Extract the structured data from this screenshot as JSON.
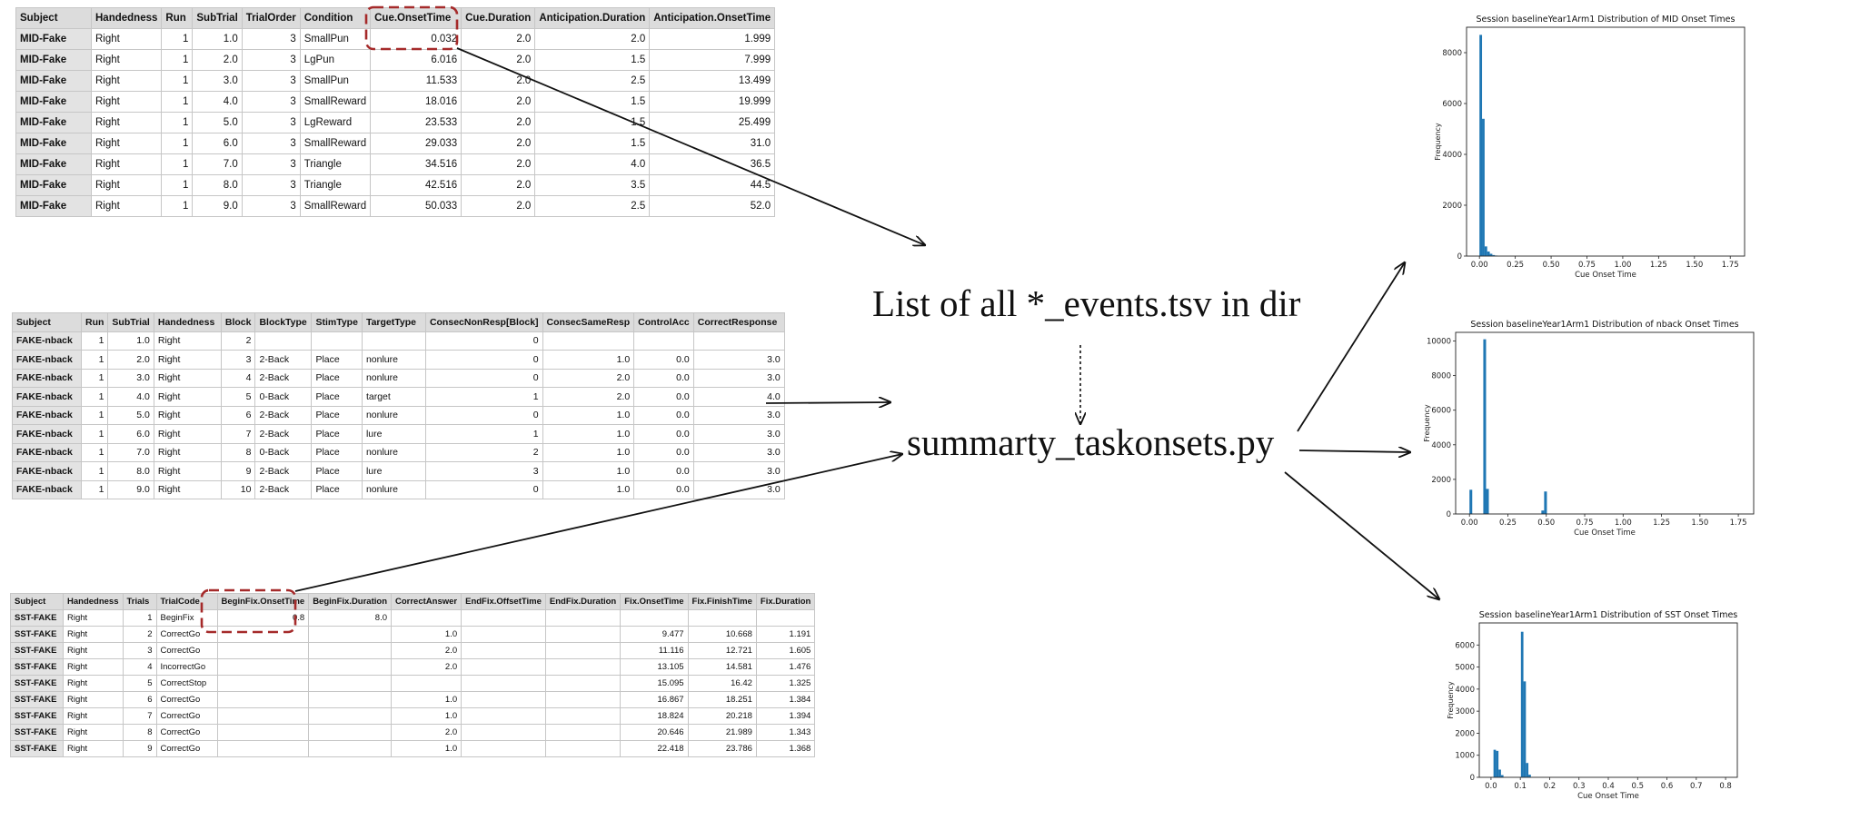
{
  "tables": {
    "mid": {
      "columns": [
        "Subject",
        "Handedness",
        "Run",
        "SubTrial",
        "TrialOrder",
        "Condition",
        "Cue.OnsetTime",
        "Cue.Duration",
        "Anticipation.Duration",
        "Anticipation.OnsetTime"
      ],
      "rows": [
        [
          "MID-Fake",
          "Right",
          "1",
          "1.0",
          "3",
          "SmallPun",
          "0.032",
          "2.0",
          "2.0",
          "1.999"
        ],
        [
          "MID-Fake",
          "Right",
          "1",
          "2.0",
          "3",
          "LgPun",
          "6.016",
          "2.0",
          "1.5",
          "7.999"
        ],
        [
          "MID-Fake",
          "Right",
          "1",
          "3.0",
          "3",
          "SmallPun",
          "11.533",
          "2.0",
          "2.5",
          "13.499"
        ],
        [
          "MID-Fake",
          "Right",
          "1",
          "4.0",
          "3",
          "SmallReward",
          "18.016",
          "2.0",
          "1.5",
          "19.999"
        ],
        [
          "MID-Fake",
          "Right",
          "1",
          "5.0",
          "3",
          "LgReward",
          "23.533",
          "2.0",
          "1.5",
          "25.499"
        ],
        [
          "MID-Fake",
          "Right",
          "1",
          "6.0",
          "3",
          "SmallReward",
          "29.033",
          "2.0",
          "1.5",
          "31.0"
        ],
        [
          "MID-Fake",
          "Right",
          "1",
          "7.0",
          "3",
          "Triangle",
          "34.516",
          "2.0",
          "4.0",
          "36.5"
        ],
        [
          "MID-Fake",
          "Right",
          "1",
          "8.0",
          "3",
          "Triangle",
          "42.516",
          "2.0",
          "3.5",
          "44.5"
        ],
        [
          "MID-Fake",
          "Right",
          "1",
          "9.0",
          "3",
          "SmallReward",
          "50.033",
          "2.0",
          "2.5",
          "52.0"
        ]
      ]
    },
    "nback": {
      "columns": [
        "Subject",
        "Run",
        "SubTrial",
        "Handedness",
        "Block",
        "BlockType",
        "StimType",
        "TargetType",
        "ConsecNonResp[Block]",
        "ConsecSameResp",
        "ControlAcc",
        "CorrectResponse"
      ],
      "rows": [
        [
          "FAKE-nback",
          "1",
          "1.0",
          "Right",
          "2",
          "",
          "",
          "",
          "0",
          "",
          "",
          ""
        ],
        [
          "FAKE-nback",
          "1",
          "2.0",
          "Right",
          "3",
          "2-Back",
          "Place",
          "nonlure",
          "0",
          "1.0",
          "0.0",
          "3.0"
        ],
        [
          "FAKE-nback",
          "1",
          "3.0",
          "Right",
          "4",
          "2-Back",
          "Place",
          "nonlure",
          "0",
          "2.0",
          "0.0",
          "3.0"
        ],
        [
          "FAKE-nback",
          "1",
          "4.0",
          "Right",
          "5",
          "0-Back",
          "Place",
          "target",
          "1",
          "2.0",
          "0.0",
          "4.0"
        ],
        [
          "FAKE-nback",
          "1",
          "5.0",
          "Right",
          "6",
          "2-Back",
          "Place",
          "nonlure",
          "0",
          "1.0",
          "0.0",
          "3.0"
        ],
        [
          "FAKE-nback",
          "1",
          "6.0",
          "Right",
          "7",
          "2-Back",
          "Place",
          "lure",
          "1",
          "1.0",
          "0.0",
          "3.0"
        ],
        [
          "FAKE-nback",
          "1",
          "7.0",
          "Right",
          "8",
          "0-Back",
          "Place",
          "nonlure",
          "2",
          "1.0",
          "0.0",
          "3.0"
        ],
        [
          "FAKE-nback",
          "1",
          "8.0",
          "Right",
          "9",
          "2-Back",
          "Place",
          "lure",
          "3",
          "1.0",
          "0.0",
          "3.0"
        ],
        [
          "FAKE-nback",
          "1",
          "9.0",
          "Right",
          "10",
          "2-Back",
          "Place",
          "nonlure",
          "0",
          "1.0",
          "0.0",
          "3.0"
        ]
      ]
    },
    "sst": {
      "columns": [
        "Subject",
        "Handedness",
        "Trials",
        "TrialCode",
        "BeginFix.OnsetTime",
        "BeginFix.Duration",
        "CorrectAnswer",
        "EndFix.OffsetTime",
        "EndFix.Duration",
        "Fix.OnsetTime",
        "Fix.FinishTime",
        "Fix.Duration"
      ],
      "rows": [
        [
          "SST-FAKE",
          "Right",
          "1",
          "BeginFix",
          "0.8",
          "8.0",
          "",
          "",
          "",
          "",
          "",
          ""
        ],
        [
          "SST-FAKE",
          "Right",
          "2",
          "CorrectGo",
          "",
          "",
          "1.0",
          "",
          "",
          "9.477",
          "10.668",
          "1.191"
        ],
        [
          "SST-FAKE",
          "Right",
          "3",
          "CorrectGo",
          "",
          "",
          "2.0",
          "",
          "",
          "11.116",
          "12.721",
          "1.605"
        ],
        [
          "SST-FAKE",
          "Right",
          "4",
          "IncorrectGo",
          "",
          "",
          "2.0",
          "",
          "",
          "13.105",
          "14.581",
          "1.476"
        ],
        [
          "SST-FAKE",
          "Right",
          "5",
          "CorrectStop",
          "",
          "",
          "",
          "",
          "",
          "15.095",
          "16.42",
          "1.325"
        ],
        [
          "SST-FAKE",
          "Right",
          "6",
          "CorrectGo",
          "",
          "",
          "1.0",
          "",
          "",
          "16.867",
          "18.251",
          "1.384"
        ],
        [
          "SST-FAKE",
          "Right",
          "7",
          "CorrectGo",
          "",
          "",
          "1.0",
          "",
          "",
          "18.824",
          "20.218",
          "1.394"
        ],
        [
          "SST-FAKE",
          "Right",
          "8",
          "CorrectGo",
          "",
          "",
          "2.0",
          "",
          "",
          "20.646",
          "21.989",
          "1.343"
        ],
        [
          "SST-FAKE",
          "Right",
          "9",
          "CorrectGo",
          "",
          "",
          "1.0",
          "",
          "",
          "22.418",
          "23.786",
          "1.368"
        ]
      ]
    }
  },
  "diagram": {
    "events_label": "List of all *_events.tsv in dir",
    "script_label": "summarty_taskonsets.py",
    "arrow_color": "#111111",
    "highlight_color": "#a52a2a"
  },
  "chart_data": [
    {
      "type": "bar",
      "title": "Session baselineYear1Arm1 Distribution of MID Onset Times",
      "xlabel": "Cue Onset Time",
      "ylabel": "Frequency",
      "xlim": [
        -0.09,
        1.85
      ],
      "ylim": [
        0,
        9000
      ],
      "xticks": [
        "0.00",
        "0.25",
        "0.50",
        "0.75",
        "1.00",
        "1.25",
        "1.50",
        "1.75"
      ],
      "yticks": [
        "0",
        "2000",
        "4000",
        "6000",
        "8000"
      ],
      "bin_width": 0.018,
      "bars": [
        {
          "x": 0.0,
          "value": 8700
        },
        {
          "x": 0.018,
          "value": 5400
        },
        {
          "x": 0.036,
          "value": 380
        },
        {
          "x": 0.054,
          "value": 180
        },
        {
          "x": 0.072,
          "value": 90
        },
        {
          "x": 0.09,
          "value": 40
        },
        {
          "x": 0.108,
          "value": 20
        }
      ],
      "color": "#1f77b4"
    },
    {
      "type": "bar",
      "title": "Session baselineYear1Arm1 Distribution of nback Onset Times",
      "xlabel": "Cue Onset Time",
      "ylabel": "Frequency",
      "xlim": [
        -0.09,
        1.85
      ],
      "ylim": [
        0,
        10500
      ],
      "xticks": [
        "0.00",
        "0.25",
        "0.50",
        "0.75",
        "1.00",
        "1.25",
        "1.50",
        "1.75"
      ],
      "yticks": [
        "0",
        "2000",
        "4000",
        "6000",
        "8000",
        "10000"
      ],
      "bin_width": 0.018,
      "bars": [
        {
          "x": 0.0,
          "value": 1400
        },
        {
          "x": 0.09,
          "value": 10100
        },
        {
          "x": 0.108,
          "value": 1450
        },
        {
          "x": 0.468,
          "value": 200
        },
        {
          "x": 0.486,
          "value": 1300
        }
      ],
      "color": "#1f77b4"
    },
    {
      "type": "bar",
      "title": "Session baselineYear1Arm1 Distribution of SST Onset Times",
      "xlabel": "Cue Onset Time",
      "ylabel": "Frequency",
      "xlim": [
        -0.04,
        0.84
      ],
      "ylim": [
        0,
        7000
      ],
      "xticks": [
        "0.0",
        "0.1",
        "0.2",
        "0.3",
        "0.4",
        "0.5",
        "0.6",
        "0.7",
        "0.8"
      ],
      "yticks": [
        "0",
        "1000",
        "2000",
        "3000",
        "4000",
        "5000",
        "6000"
      ],
      "bin_width": 0.0085,
      "bars": [
        {
          "x": 0.0085,
          "value": 1250
        },
        {
          "x": 0.017,
          "value": 1200
        },
        {
          "x": 0.0255,
          "value": 350
        },
        {
          "x": 0.034,
          "value": 100
        },
        {
          "x": 0.102,
          "value": 6600
        },
        {
          "x": 0.1105,
          "value": 4350
        },
        {
          "x": 0.119,
          "value": 650
        },
        {
          "x": 0.1275,
          "value": 120
        }
      ],
      "color": "#1f77b4"
    }
  ]
}
